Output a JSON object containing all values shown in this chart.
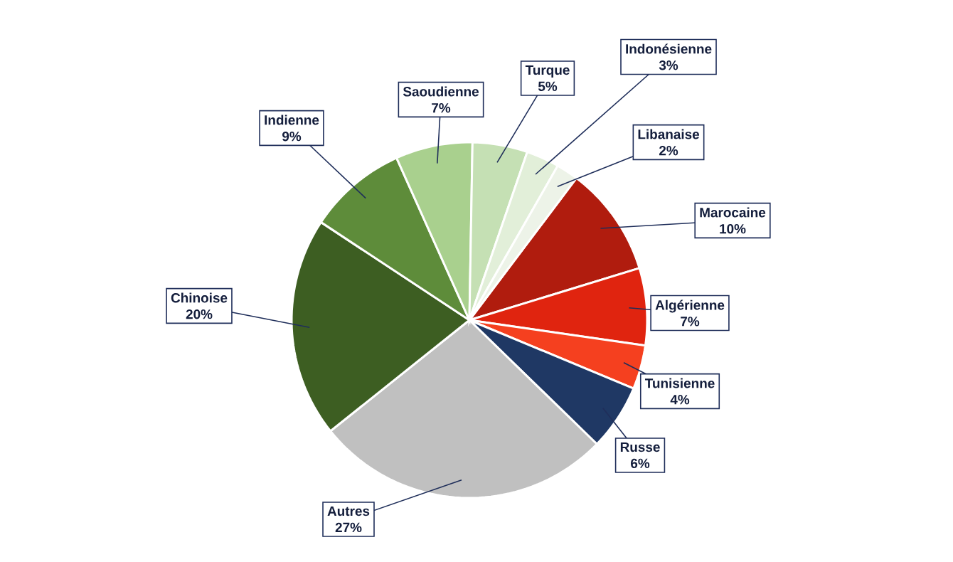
{
  "chart_data": {
    "type": "pie",
    "categories": [
      "Marocaine",
      "Algérienne",
      "Tunisienne",
      "Russe",
      "Autres",
      "Chinoise",
      "Indienne",
      "Saoudienne",
      "Turque",
      "Indonésienne",
      "Libanaise"
    ],
    "values": [
      10,
      7,
      4,
      6,
      27,
      20,
      9,
      7,
      5,
      3,
      2
    ],
    "value_labels": [
      "10%",
      "7%",
      "4%",
      "6%",
      "27%",
      "20%",
      "9%",
      "7%",
      "5%",
      "3%",
      "2%"
    ],
    "colors": [
      "#b01c0e",
      "#e0240f",
      "#f5401f",
      "#1f3864",
      "#c0c0c0",
      "#3d5e22",
      "#5e8c3a",
      "#a9d08e",
      "#c5e0b4",
      "#e2efd9",
      "#edf3e8"
    ]
  }
}
